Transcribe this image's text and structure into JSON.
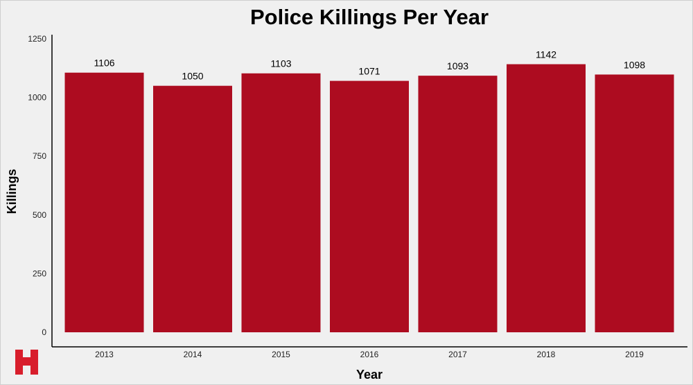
{
  "chart_data": {
    "type": "bar",
    "title": "Police Killings Per Year",
    "xlabel": "Year",
    "ylabel": "Killings",
    "categories": [
      "2013",
      "2014",
      "2015",
      "2016",
      "2017",
      "2018",
      "2019"
    ],
    "values": [
      1106,
      1050,
      1103,
      1071,
      1093,
      1142,
      1098
    ],
    "ylim": [
      0,
      1250
    ],
    "yticks": [
      0,
      250,
      500,
      750,
      1000,
      1250
    ],
    "grid": false,
    "legend": "none",
    "bar_color": "#ad0c20"
  },
  "logo": {
    "name": "H",
    "color": "#d81e2c"
  }
}
